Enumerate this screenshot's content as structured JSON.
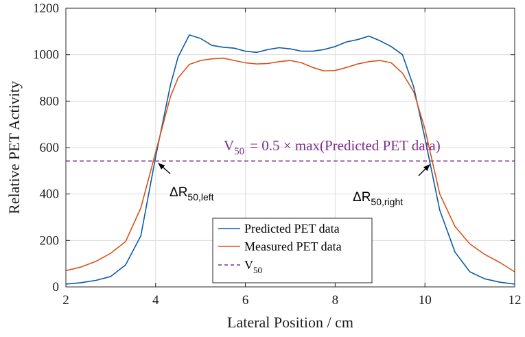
{
  "chart_data": {
    "type": "line",
    "xlabel": "Lateral Position / cm",
    "ylabel": "Relative PET Activity",
    "xlim": [
      2,
      12
    ],
    "ylim": [
      0,
      1200
    ],
    "xticks": [
      2,
      4,
      6,
      8,
      10,
      12
    ],
    "yticks": [
      0,
      200,
      400,
      600,
      800,
      1000,
      1200
    ],
    "grid": true,
    "legend_position": "bottom-center",
    "series": [
      {
        "name": "Predicted PET data",
        "color": "#0b5aa6",
        "x": [
          2.0,
          2.33,
          2.67,
          3.0,
          3.33,
          3.67,
          4.0,
          4.33,
          4.5,
          4.75,
          5.0,
          5.25,
          5.5,
          5.75,
          6.0,
          6.25,
          6.5,
          6.75,
          7.0,
          7.25,
          7.5,
          7.75,
          8.0,
          8.25,
          8.5,
          8.75,
          9.0,
          9.25,
          9.5,
          9.75,
          10.0,
          10.33,
          10.67,
          11.0,
          11.33,
          11.67,
          12.0
        ],
        "y": [
          12,
          18,
          28,
          45,
          95,
          220,
          560,
          870,
          990,
          1085,
          1070,
          1040,
          1032,
          1028,
          1015,
          1010,
          1022,
          1030,
          1025,
          1015,
          1015,
          1022,
          1035,
          1055,
          1065,
          1080,
          1060,
          1035,
          1000,
          860,
          640,
          330,
          150,
          65,
          35,
          20,
          12
        ]
      },
      {
        "name": "Measured PET data",
        "color": "#d95319",
        "x": [
          2.0,
          2.33,
          2.67,
          3.0,
          3.33,
          3.67,
          4.0,
          4.33,
          4.5,
          4.75,
          5.0,
          5.25,
          5.5,
          5.75,
          6.0,
          6.25,
          6.5,
          6.75,
          7.0,
          7.25,
          7.5,
          7.75,
          8.0,
          8.25,
          8.5,
          8.75,
          9.0,
          9.25,
          9.5,
          9.75,
          10.0,
          10.33,
          10.67,
          11.0,
          11.33,
          11.67,
          12.0
        ],
        "y": [
          70,
          85,
          110,
          145,
          195,
          340,
          580,
          820,
          900,
          958,
          975,
          982,
          985,
          975,
          965,
          960,
          962,
          970,
          975,
          965,
          945,
          930,
          932,
          945,
          960,
          970,
          975,
          965,
          920,
          840,
          680,
          400,
          260,
          185,
          140,
          105,
          65
        ]
      },
      {
        "name": "V",
        "name_sub": "50",
        "color": "#7e2f8e",
        "style": "dashed",
        "x": [
          2,
          12
        ],
        "y": [
          542,
          542
        ]
      }
    ],
    "annotations": [
      {
        "base": "ΔR",
        "sub": "50,left",
        "target_x": 3.98,
        "target_y": 560
      },
      {
        "base": "ΔR",
        "sub": "50,right",
        "target_x": 10.2,
        "target_y": 540
      }
    ],
    "v50_label": {
      "v": "V",
      "sub": "50",
      "rest": "= 0.5 × max(Predicted PET data)"
    }
  }
}
